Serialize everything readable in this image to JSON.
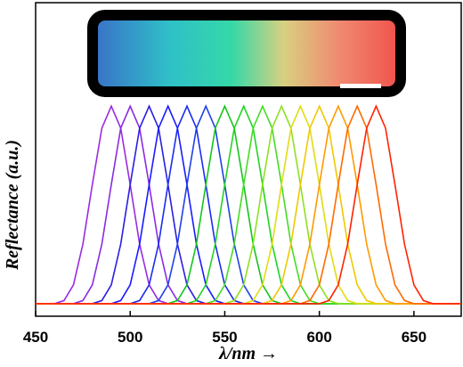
{
  "chart_data": {
    "type": "line",
    "x_label": "λ/nm →",
    "y_label": "Reflectance (a.u.)",
    "x": [
      450,
      455,
      460,
      465,
      470,
      475,
      480,
      485,
      490,
      495,
      500,
      505,
      510,
      515,
      520,
      525,
      530,
      535,
      540,
      545,
      550,
      555,
      560,
      565,
      570,
      575,
      580,
      585,
      590,
      595,
      600,
      605,
      610,
      615,
      620,
      625,
      630,
      635,
      640,
      645,
      650,
      655,
      660,
      665,
      670,
      675
    ],
    "xlim": [
      450,
      675
    ],
    "xticks": [
      450,
      500,
      550,
      600,
      650
    ],
    "ylim": [
      0,
      1
    ],
    "series": [
      {
        "color": "#9a2be0",
        "values": [
          0.04,
          0.04,
          0.04,
          0.05,
          0.1,
          0.23,
          0.42,
          0.6,
          0.67,
          0.6,
          0.42,
          0.23,
          0.1,
          0.05,
          0.04,
          0.04,
          0.04,
          0.04,
          0.04,
          0.04,
          0.04,
          0.04,
          0.04,
          0.04,
          0.04,
          0.04,
          0.04,
          0.04,
          0.04,
          0.04,
          0.04,
          0.04,
          0.04,
          0.04,
          0.04,
          0.04,
          0.04,
          0.04,
          0.04,
          0.04,
          0.04,
          0.04,
          0.04,
          0.04,
          0.04,
          0.04
        ]
      },
      {
        "color": "#8a2be2",
        "values": [
          0.04,
          0.04,
          0.04,
          0.04,
          0.04,
          0.05,
          0.1,
          0.23,
          0.42,
          0.6,
          0.67,
          0.6,
          0.42,
          0.23,
          0.1,
          0.05,
          0.04,
          0.04,
          0.04,
          0.04,
          0.04,
          0.04,
          0.04,
          0.04,
          0.04,
          0.04,
          0.04,
          0.04,
          0.04,
          0.04,
          0.04,
          0.04,
          0.04,
          0.04,
          0.04,
          0.04,
          0.04,
          0.04,
          0.04,
          0.04,
          0.04,
          0.04,
          0.04,
          0.04,
          0.04,
          0.04
        ]
      },
      {
        "color": "#2a1ee0",
        "values": [
          0.04,
          0.04,
          0.04,
          0.04,
          0.04,
          0.04,
          0.04,
          0.05,
          0.1,
          0.23,
          0.42,
          0.6,
          0.67,
          0.6,
          0.42,
          0.23,
          0.1,
          0.05,
          0.04,
          0.04,
          0.04,
          0.04,
          0.04,
          0.04,
          0.04,
          0.04,
          0.04,
          0.04,
          0.04,
          0.04,
          0.04,
          0.04,
          0.04,
          0.04,
          0.04,
          0.04,
          0.04,
          0.04,
          0.04,
          0.04,
          0.04,
          0.04,
          0.04,
          0.04,
          0.04,
          0.04
        ]
      },
      {
        "color": "#1a1aff",
        "values": [
          0.04,
          0.04,
          0.04,
          0.04,
          0.04,
          0.04,
          0.04,
          0.04,
          0.04,
          0.05,
          0.1,
          0.23,
          0.42,
          0.6,
          0.67,
          0.6,
          0.42,
          0.23,
          0.1,
          0.05,
          0.04,
          0.04,
          0.04,
          0.04,
          0.04,
          0.04,
          0.04,
          0.04,
          0.04,
          0.04,
          0.04,
          0.04,
          0.04,
          0.04,
          0.04,
          0.04,
          0.04,
          0.04,
          0.04,
          0.04,
          0.04,
          0.04,
          0.04,
          0.04,
          0.04,
          0.04
        ]
      },
      {
        "color": "#1a2cf0",
        "values": [
          0.04,
          0.04,
          0.04,
          0.04,
          0.04,
          0.04,
          0.04,
          0.04,
          0.04,
          0.04,
          0.04,
          0.05,
          0.1,
          0.23,
          0.42,
          0.6,
          0.67,
          0.6,
          0.42,
          0.23,
          0.1,
          0.05,
          0.04,
          0.04,
          0.04,
          0.04,
          0.04,
          0.04,
          0.04,
          0.04,
          0.04,
          0.04,
          0.04,
          0.04,
          0.04,
          0.04,
          0.04,
          0.04,
          0.04,
          0.04,
          0.04,
          0.04,
          0.04,
          0.04,
          0.04,
          0.04
        ]
      },
      {
        "color": "#1f40e8",
        "values": [
          0.04,
          0.04,
          0.04,
          0.04,
          0.04,
          0.04,
          0.04,
          0.04,
          0.04,
          0.04,
          0.04,
          0.04,
          0.04,
          0.05,
          0.1,
          0.23,
          0.42,
          0.6,
          0.67,
          0.6,
          0.42,
          0.23,
          0.1,
          0.05,
          0.04,
          0.04,
          0.04,
          0.04,
          0.04,
          0.04,
          0.04,
          0.04,
          0.04,
          0.04,
          0.04,
          0.04,
          0.04,
          0.04,
          0.04,
          0.04,
          0.04,
          0.04,
          0.04,
          0.04,
          0.04,
          0.04
        ]
      },
      {
        "color": "#16c41c",
        "values": [
          0.04,
          0.04,
          0.04,
          0.04,
          0.04,
          0.04,
          0.04,
          0.04,
          0.04,
          0.04,
          0.04,
          0.04,
          0.04,
          0.04,
          0.04,
          0.05,
          0.1,
          0.23,
          0.42,
          0.6,
          0.67,
          0.6,
          0.42,
          0.23,
          0.1,
          0.05,
          0.04,
          0.04,
          0.04,
          0.04,
          0.04,
          0.04,
          0.04,
          0.04,
          0.04,
          0.04,
          0.04,
          0.04,
          0.04,
          0.04,
          0.04,
          0.04,
          0.04,
          0.04,
          0.04,
          0.04
        ]
      },
      {
        "color": "#22d422",
        "values": [
          0.04,
          0.04,
          0.04,
          0.04,
          0.04,
          0.04,
          0.04,
          0.04,
          0.04,
          0.04,
          0.04,
          0.04,
          0.04,
          0.04,
          0.04,
          0.04,
          0.04,
          0.05,
          0.1,
          0.23,
          0.42,
          0.6,
          0.67,
          0.6,
          0.42,
          0.23,
          0.1,
          0.05,
          0.04,
          0.04,
          0.04,
          0.04,
          0.04,
          0.04,
          0.04,
          0.04,
          0.04,
          0.04,
          0.04,
          0.04,
          0.04,
          0.04,
          0.04,
          0.04,
          0.04,
          0.04
        ]
      },
      {
        "color": "#44dd22",
        "values": [
          0.04,
          0.04,
          0.04,
          0.04,
          0.04,
          0.04,
          0.04,
          0.04,
          0.04,
          0.04,
          0.04,
          0.04,
          0.04,
          0.04,
          0.04,
          0.04,
          0.04,
          0.04,
          0.04,
          0.05,
          0.1,
          0.23,
          0.42,
          0.6,
          0.67,
          0.6,
          0.42,
          0.23,
          0.1,
          0.05,
          0.04,
          0.04,
          0.04,
          0.04,
          0.04,
          0.04,
          0.04,
          0.04,
          0.04,
          0.04,
          0.04,
          0.04,
          0.04,
          0.04,
          0.04,
          0.04
        ]
      },
      {
        "color": "#8ee022",
        "values": [
          0.04,
          0.04,
          0.04,
          0.04,
          0.04,
          0.04,
          0.04,
          0.04,
          0.04,
          0.04,
          0.04,
          0.04,
          0.04,
          0.04,
          0.04,
          0.04,
          0.04,
          0.04,
          0.04,
          0.04,
          0.04,
          0.05,
          0.1,
          0.23,
          0.42,
          0.6,
          0.67,
          0.6,
          0.42,
          0.23,
          0.1,
          0.05,
          0.04,
          0.04,
          0.04,
          0.04,
          0.04,
          0.04,
          0.04,
          0.04,
          0.04,
          0.04,
          0.04,
          0.04,
          0.04,
          0.04
        ]
      },
      {
        "color": "#e0dc10",
        "values": [
          0.04,
          0.04,
          0.04,
          0.04,
          0.04,
          0.04,
          0.04,
          0.04,
          0.04,
          0.04,
          0.04,
          0.04,
          0.04,
          0.04,
          0.04,
          0.04,
          0.04,
          0.04,
          0.04,
          0.04,
          0.04,
          0.04,
          0.04,
          0.05,
          0.1,
          0.23,
          0.42,
          0.6,
          0.67,
          0.6,
          0.42,
          0.23,
          0.1,
          0.05,
          0.04,
          0.04,
          0.04,
          0.04,
          0.04,
          0.04,
          0.04,
          0.04,
          0.04,
          0.04,
          0.04,
          0.04
        ]
      },
      {
        "color": "#f0c800",
        "values": [
          0.04,
          0.04,
          0.04,
          0.04,
          0.04,
          0.04,
          0.04,
          0.04,
          0.04,
          0.04,
          0.04,
          0.04,
          0.04,
          0.04,
          0.04,
          0.04,
          0.04,
          0.04,
          0.04,
          0.04,
          0.04,
          0.04,
          0.04,
          0.04,
          0.04,
          0.05,
          0.1,
          0.23,
          0.42,
          0.6,
          0.67,
          0.6,
          0.42,
          0.23,
          0.1,
          0.05,
          0.04,
          0.04,
          0.04,
          0.04,
          0.04,
          0.04,
          0.04,
          0.04,
          0.04,
          0.04
        ]
      },
      {
        "color": "#ff9a00",
        "values": [
          0.04,
          0.04,
          0.04,
          0.04,
          0.04,
          0.04,
          0.04,
          0.04,
          0.04,
          0.04,
          0.04,
          0.04,
          0.04,
          0.04,
          0.04,
          0.04,
          0.04,
          0.04,
          0.04,
          0.04,
          0.04,
          0.04,
          0.04,
          0.04,
          0.04,
          0.04,
          0.04,
          0.05,
          0.1,
          0.23,
          0.42,
          0.6,
          0.67,
          0.6,
          0.42,
          0.23,
          0.1,
          0.05,
          0.04,
          0.04,
          0.04,
          0.04,
          0.04,
          0.04,
          0.04,
          0.04
        ]
      },
      {
        "color": "#ff6a00",
        "values": [
          0.04,
          0.04,
          0.04,
          0.04,
          0.04,
          0.04,
          0.04,
          0.04,
          0.04,
          0.04,
          0.04,
          0.04,
          0.04,
          0.04,
          0.04,
          0.04,
          0.04,
          0.04,
          0.04,
          0.04,
          0.04,
          0.04,
          0.04,
          0.04,
          0.04,
          0.04,
          0.04,
          0.04,
          0.04,
          0.05,
          0.1,
          0.23,
          0.42,
          0.6,
          0.67,
          0.6,
          0.42,
          0.23,
          0.1,
          0.05,
          0.04,
          0.04,
          0.04,
          0.04,
          0.04,
          0.04
        ]
      },
      {
        "color": "#ff2200",
        "values": [
          0.04,
          0.04,
          0.04,
          0.04,
          0.04,
          0.04,
          0.04,
          0.04,
          0.04,
          0.04,
          0.04,
          0.04,
          0.04,
          0.04,
          0.04,
          0.04,
          0.04,
          0.04,
          0.04,
          0.04,
          0.04,
          0.04,
          0.04,
          0.04,
          0.04,
          0.04,
          0.04,
          0.04,
          0.04,
          0.04,
          0.04,
          0.05,
          0.1,
          0.23,
          0.42,
          0.6,
          0.67,
          0.6,
          0.42,
          0.23,
          0.1,
          0.05,
          0.04,
          0.04,
          0.04,
          0.04
        ]
      }
    ]
  }
}
